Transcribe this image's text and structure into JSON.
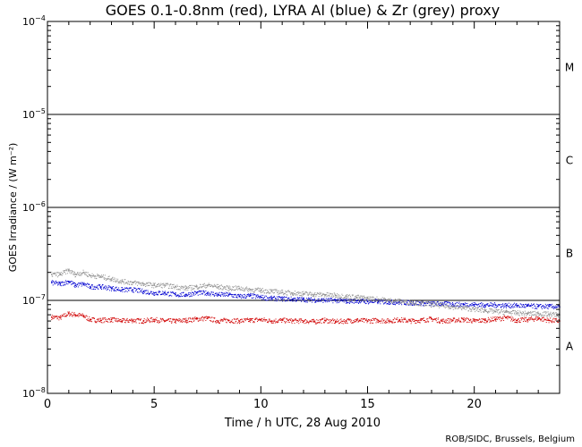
{
  "chart_data": {
    "type": "scatter",
    "title": "GOES 0.1-0.8nm (red), LYRA Al (blue) & Zr (grey) proxy",
    "xlabel": "Time / h UTC, 28 Aug 2010",
    "ylabel": "GOES Irradiance / (W m⁻²)",
    "xlim": [
      0,
      24
    ],
    "ylim": [
      1e-08,
      0.0001
    ],
    "y_scale": "log",
    "x_ticks": [
      0,
      5,
      10,
      15,
      20
    ],
    "x_tick_labels": [
      "0",
      "5",
      "10",
      "15",
      "20"
    ],
    "y_ticks": [
      1e-08,
      1e-07,
      1e-06,
      1e-05,
      0.0001
    ],
    "y_tick_labels": [
      {
        "base": "10",
        "exp": "−8"
      },
      {
        "base": "10",
        "exp": "−7"
      },
      {
        "base": "10",
        "exp": "−6"
      },
      {
        "base": "10",
        "exp": "−5"
      },
      {
        "base": "10",
        "exp": "−4"
      }
    ],
    "flare_class_lines": [
      1e-07,
      1e-06,
      1e-05
    ],
    "flare_classes": [
      {
        "label": "M",
        "value": 3.2e-05
      },
      {
        "label": "C",
        "value": 3.2e-06
      },
      {
        "label": "B",
        "value": 3.2e-07
      },
      {
        "label": "A",
        "value": 3.2e-08
      }
    ],
    "series": [
      {
        "key": "goes",
        "color": "#d00000",
        "x": [
          0.2,
          0.6,
          1.0,
          1.3,
          1.7,
          2.0,
          2.5,
          3.0,
          3.5,
          4.0,
          4.5,
          5.0,
          5.5,
          6.0,
          6.5,
          7.0,
          7.5,
          8.0,
          8.5,
          9.0,
          9.5,
          10.0,
          10.5,
          11.0,
          11.5,
          12.0,
          12.5,
          13.0,
          13.5,
          14.0,
          14.5,
          15.0,
          15.5,
          16.0,
          16.5,
          17.0,
          17.5,
          18.0,
          18.5,
          19.0,
          19.5,
          20.0,
          20.5,
          21.0,
          21.5,
          22.0,
          22.5,
          23.0,
          23.5,
          24.0
        ],
        "y": [
          6.6e-08,
          6.5e-08,
          7.2e-08,
          7e-08,
          6.8e-08,
          6.2e-08,
          6.1e-08,
          6.2e-08,
          6e-08,
          6.1e-08,
          6e-08,
          6.2e-08,
          6e-08,
          6e-08,
          6.1e-08,
          6.3e-08,
          6.4e-08,
          6e-08,
          6.1e-08,
          6e-08,
          6.1e-08,
          6.2e-08,
          6e-08,
          6.1e-08,
          6e-08,
          6e-08,
          5.9e-08,
          6.1e-08,
          5.9e-08,
          6e-08,
          6.1e-08,
          6e-08,
          6.1e-08,
          6e-08,
          6.2e-08,
          6e-08,
          6.1e-08,
          6.3e-08,
          6e-08,
          6.1e-08,
          6.2e-08,
          6e-08,
          6.1e-08,
          6.3e-08,
          6.5e-08,
          6.1e-08,
          6.2e-08,
          6.4e-08,
          6.1e-08,
          6e-08
        ]
      },
      {
        "key": "lyra_al",
        "color": "#0000d0",
        "x": [
          0.2,
          0.6,
          1.0,
          1.3,
          1.7,
          2.0,
          2.5,
          3.0,
          3.5,
          4.0,
          4.5,
          5.0,
          5.5,
          6.0,
          6.5,
          7.0,
          7.5,
          8.0,
          8.5,
          9.0,
          9.5,
          10.0,
          10.5,
          11.0,
          11.5,
          12.0,
          12.5,
          13.0,
          13.5,
          14.0,
          14.5,
          15.0,
          15.5,
          16.0,
          16.5,
          17.0,
          17.5,
          18.0,
          18.5,
          19.0,
          19.5,
          20.0,
          20.5,
          21.0,
          21.5,
          22.0,
          22.5,
          23.0,
          23.5,
          24.0
        ],
        "y": [
          1.55e-07,
          1.5e-07,
          1.6e-07,
          1.45e-07,
          1.5e-07,
          1.4e-07,
          1.4e-07,
          1.35e-07,
          1.3e-07,
          1.3e-07,
          1.25e-07,
          1.2e-07,
          1.2e-07,
          1.15e-07,
          1.15e-07,
          1.2e-07,
          1.2e-07,
          1.15e-07,
          1.15e-07,
          1.1e-07,
          1.12e-07,
          1.08e-07,
          1.05e-07,
          1.04e-07,
          1.03e-07,
          1.02e-07,
          1.01e-07,
          1e-07,
          1e-07,
          9.8e-08,
          9.9e-08,
          9.7e-08,
          9.7e-08,
          9.6e-08,
          9.5e-08,
          9.4e-08,
          9.3e-08,
          9.2e-08,
          9.2e-08,
          9.1e-08,
          9e-08,
          9e-08,
          8.9e-08,
          8.9e-08,
          8.8e-08,
          8.8e-08,
          8.7e-08,
          8.6e-08,
          8.6e-08,
          8.5e-08
        ]
      },
      {
        "key": "lyra_zr",
        "color": "#909090",
        "x": [
          0.2,
          0.6,
          1.0,
          1.3,
          1.7,
          2.0,
          2.5,
          3.0,
          3.5,
          4.0,
          4.5,
          5.0,
          5.5,
          6.0,
          6.5,
          7.0,
          7.5,
          8.0,
          8.5,
          9.0,
          9.5,
          10.0,
          10.5,
          11.0,
          11.5,
          12.0,
          12.5,
          13.0,
          13.5,
          14.0,
          14.5,
          15.0,
          15.5,
          16.0,
          16.5,
          17.0,
          17.5,
          18.0,
          18.5,
          19.0,
          19.5,
          20.0,
          20.5,
          21.0,
          21.5,
          22.0,
          22.5,
          23.0,
          23.5,
          24.0
        ],
        "y": [
          1.9e-07,
          1.9e-07,
          2.1e-07,
          1.9e-07,
          2e-07,
          1.85e-07,
          1.8e-07,
          1.7e-07,
          1.6e-07,
          1.55e-07,
          1.5e-07,
          1.45e-07,
          1.45e-07,
          1.4e-07,
          1.35e-07,
          1.4e-07,
          1.45e-07,
          1.4e-07,
          1.35e-07,
          1.35e-07,
          1.3e-07,
          1.28e-07,
          1.25e-07,
          1.22e-07,
          1.2e-07,
          1.18e-07,
          1.16e-07,
          1.15e-07,
          1.13e-07,
          1.1e-07,
          1.08e-07,
          1.05e-07,
          1.03e-07,
          1e-07,
          9.8e-08,
          9.5e-08,
          9.3e-08,
          9e-08,
          8.8e-08,
          8.5e-08,
          8.3e-08,
          8e-08,
          7.8e-08,
          7.6e-08,
          7.5e-08,
          7.3e-08,
          7.2e-08,
          7.2e-08,
          7.1e-08,
          7e-08
        ]
      }
    ]
  },
  "credit": "ROB/SIDC, Brussels, Belgium"
}
